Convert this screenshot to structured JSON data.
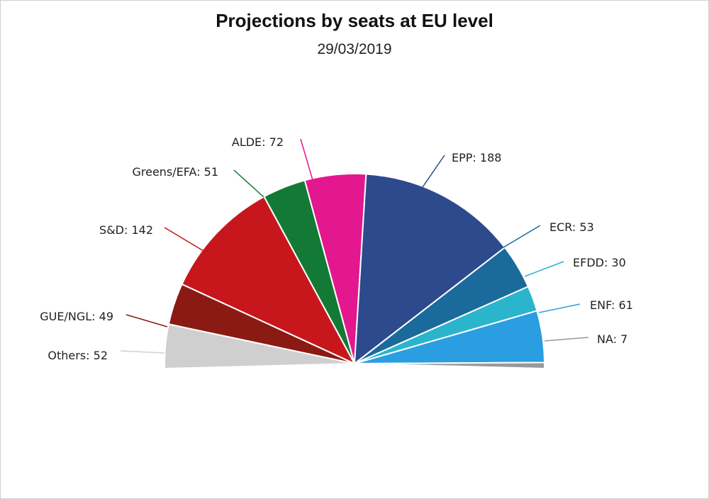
{
  "chart_data": {
    "type": "pie",
    "subtype": "semicircle",
    "title": "Projections by seats at EU level",
    "subtitle": "29/03/2019",
    "slices": [
      {
        "label": "Others",
        "value": 52,
        "color": "#cfcfcf",
        "display": "Others: 52"
      },
      {
        "label": "GUE/NGL",
        "value": 49,
        "color": "#8b1a14",
        "display": "GUE/NGL: 49"
      },
      {
        "label": "S&D",
        "value": 142,
        "color": "#c8171c",
        "display": "S&D: 142"
      },
      {
        "label": "Greens/EFA",
        "value": 51,
        "color": "#137a36",
        "display": "Greens/EFA: 51"
      },
      {
        "label": "ALDE",
        "value": 72,
        "color": "#e3178e",
        "display": "ALDE: 72"
      },
      {
        "label": "EPP",
        "value": 188,
        "color": "#2d4a8c",
        "display": "EPP: 188"
      },
      {
        "label": "ECR",
        "value": 53,
        "color": "#1a6b9c",
        "display": "ECR: 53"
      },
      {
        "label": "EFDD",
        "value": 30,
        "color": "#2bb5cc",
        "display": "EFDD: 30"
      },
      {
        "label": "ENF",
        "value": 61,
        "color": "#2a9ee0",
        "display": "ENF: 61"
      },
      {
        "label": "NA",
        "value": 7,
        "color": "#999999",
        "display": "NA: 7"
      }
    ]
  }
}
